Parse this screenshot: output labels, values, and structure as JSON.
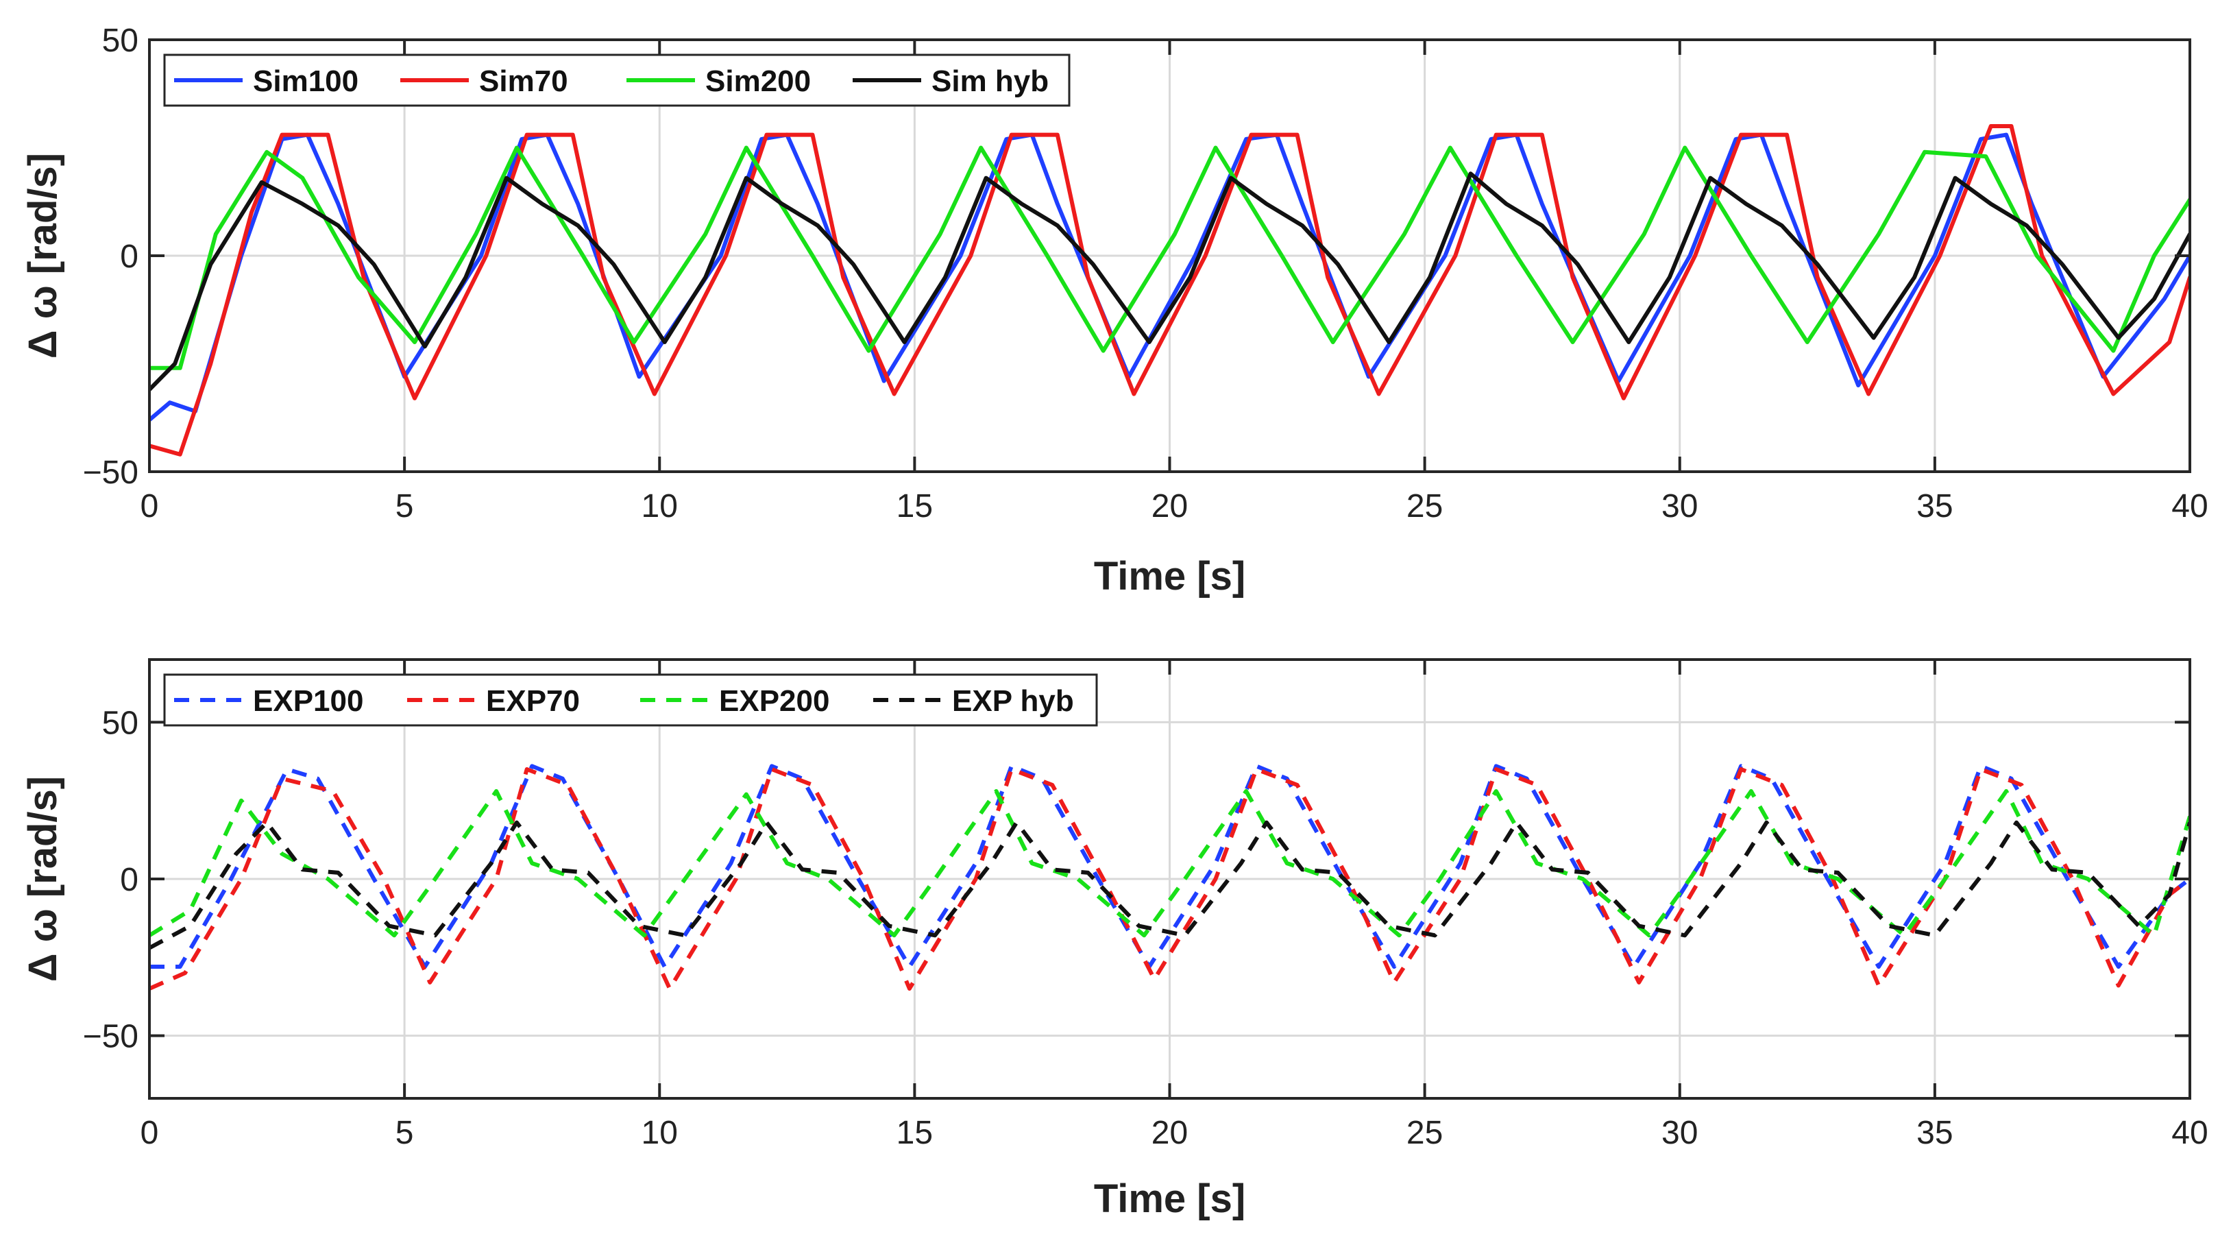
{
  "chart_data": [
    {
      "type": "line",
      "panel": "top",
      "xlabel": "Time [s]",
      "ylabel": "Δ ω [rad/s]",
      "xlim": [
        0,
        40
      ],
      "ylim": [
        -50,
        50
      ],
      "xticks": [
        0,
        5,
        10,
        15,
        20,
        25,
        30,
        35,
        40
      ],
      "yticks": [
        -50,
        0,
        50
      ],
      "xtick_labels": [
        "0",
        "5",
        "10",
        "15",
        "20",
        "25",
        "30",
        "35",
        "40"
      ],
      "ytick_labels": [
        "−50",
        "0",
        "50"
      ],
      "grid": true,
      "legend_position": "top-left",
      "line_style": "solid",
      "series": [
        {
          "name": "Sim100",
          "color": "#1f3fff",
          "x": [
            0,
            0.4,
            0.9,
            1.8,
            2.6,
            3.1,
            3.7,
            5.0,
            6.5,
            7.3,
            7.8,
            8.4,
            9.6,
            11.2,
            12.0,
            12.5,
            13.1,
            14.4,
            15.9,
            16.8,
            17.3,
            17.8,
            19.2,
            20.5,
            21.5,
            22.1,
            22.6,
            23.9,
            25.4,
            26.3,
            26.8,
            27.3,
            28.8,
            30.2,
            31.1,
            31.6,
            32.1,
            33.5,
            35.0,
            35.9,
            36.4,
            36.9,
            38.3,
            39.5,
            40.0
          ],
          "values": [
            -38,
            -34,
            -36,
            0,
            27,
            28,
            12,
            -28,
            0,
            27,
            28,
            12,
            -28,
            0,
            27,
            28,
            12,
            -29,
            0,
            27,
            28,
            12,
            -28,
            0,
            27,
            28,
            12,
            -28,
            0,
            27,
            28,
            12,
            -29,
            0,
            27,
            28,
            12,
            -30,
            0,
            27,
            28,
            12,
            -28,
            -10,
            0
          ]
        },
        {
          "name": "Sim70",
          "color": "#ee1c1c",
          "x": [
            0,
            0.6,
            1.2,
            2.0,
            2.6,
            3.5,
            4.2,
            5.2,
            6.6,
            7.4,
            8.3,
            8.9,
            9.9,
            11.3,
            12.1,
            13.0,
            13.6,
            14.6,
            16.1,
            16.9,
            17.8,
            18.4,
            19.3,
            20.7,
            21.6,
            22.5,
            23.1,
            24.1,
            25.6,
            26.4,
            27.3,
            27.9,
            28.9,
            30.3,
            31.2,
            32.1,
            32.7,
            33.7,
            35.1,
            36.1,
            36.5,
            37.1,
            38.5,
            39.6,
            40.0
          ],
          "values": [
            -44,
            -46,
            -25,
            10,
            28,
            28,
            -5,
            -33,
            0,
            28,
            28,
            -5,
            -32,
            0,
            28,
            28,
            -5,
            -32,
            0,
            28,
            28,
            -5,
            -32,
            0,
            28,
            28,
            -5,
            -32,
            0,
            28,
            28,
            -5,
            -33,
            0,
            28,
            28,
            -5,
            -32,
            0,
            30,
            30,
            0,
            -32,
            -20,
            -5
          ]
        },
        {
          "name": "Sim200",
          "color": "#18e018",
          "x": [
            0,
            0.6,
            1.3,
            2.3,
            3.0,
            4.1,
            5.2,
            6.4,
            7.2,
            8.5,
            9.5,
            10.9,
            11.7,
            13.0,
            14.1,
            15.5,
            16.3,
            17.6,
            18.7,
            20.1,
            20.9,
            22.2,
            23.2,
            24.6,
            25.5,
            26.8,
            27.9,
            29.3,
            30.1,
            31.4,
            32.5,
            33.9,
            34.8,
            36.0,
            37.0,
            38.5,
            39.3,
            40.0
          ],
          "values": [
            -26,
            -26,
            5,
            24,
            18,
            -5,
            -20,
            5,
            25,
            0,
            -20,
            5,
            25,
            0,
            -22,
            5,
            25,
            0,
            -22,
            5,
            25,
            0,
            -20,
            5,
            25,
            0,
            -20,
            5,
            25,
            0,
            -20,
            5,
            24,
            23,
            0,
            -22,
            0,
            13
          ]
        },
        {
          "name": "Sim hyb",
          "color": "#111111",
          "x": [
            0,
            0.5,
            1.2,
            2.2,
            3.0,
            3.7,
            4.4,
            5.4,
            6.2,
            7.0,
            7.7,
            8.4,
            9.1,
            10.1,
            10.9,
            11.7,
            12.4,
            13.1,
            13.8,
            14.8,
            15.6,
            16.4,
            17.1,
            17.8,
            18.5,
            19.6,
            20.4,
            21.2,
            21.9,
            22.6,
            23.3,
            24.3,
            25.1,
            25.9,
            26.6,
            27.3,
            28.0,
            29.0,
            29.8,
            30.6,
            31.3,
            32.0,
            32.7,
            33.8,
            34.6,
            35.4,
            36.1,
            36.8,
            37.5,
            38.6,
            39.3,
            40.0
          ],
          "values": [
            -31,
            -25,
            -2,
            17,
            12,
            7,
            -2,
            -21,
            -5,
            18,
            12,
            7,
            -2,
            -20,
            -5,
            18,
            12,
            7,
            -2,
            -20,
            -5,
            18,
            12,
            7,
            -2,
            -20,
            -5,
            18,
            12,
            7,
            -2,
            -20,
            -5,
            19,
            12,
            7,
            -2,
            -20,
            -5,
            18,
            12,
            7,
            -2,
            -19,
            -5,
            18,
            12,
            7,
            -2,
            -19,
            -10,
            5
          ]
        }
      ]
    },
    {
      "type": "line",
      "panel": "bottom",
      "xlabel": "Time [s]",
      "ylabel": "Δ ω [rad/s]",
      "xlim": [
        0,
        40
      ],
      "ylim": [
        -70,
        70
      ],
      "xticks": [
        0,
        5,
        10,
        15,
        20,
        25,
        30,
        35,
        40
      ],
      "yticks": [
        -50,
        0,
        50
      ],
      "xtick_labels": [
        "0",
        "5",
        "10",
        "15",
        "20",
        "25",
        "30",
        "35",
        "40"
      ],
      "ytick_labels": [
        "−50",
        "0",
        "50"
      ],
      "grid": true,
      "legend_position": "top-left",
      "line_style": "dashed",
      "series": [
        {
          "name": "EXP100",
          "color": "#1f3fff",
          "x": [
            0,
            0.6,
            1.6,
            2.7,
            3.3,
            4.4,
            5.4,
            6.7,
            7.5,
            8.1,
            9.2,
            10.1,
            11.4,
            12.2,
            12.8,
            13.9,
            14.9,
            16.2,
            16.9,
            17.5,
            18.6,
            19.6,
            20.9,
            21.7,
            22.3,
            23.4,
            24.4,
            25.7,
            26.4,
            27.0,
            28.1,
            29.1,
            30.4,
            31.2,
            31.8,
            32.9,
            33.9,
            35.2,
            35.9,
            36.5,
            37.6,
            38.6,
            39.6,
            40.0
          ],
          "values": [
            -28,
            -28,
            0,
            35,
            32,
            0,
            -28,
            5,
            36,
            32,
            0,
            -28,
            5,
            36,
            32,
            0,
            -28,
            5,
            36,
            32,
            0,
            -28,
            5,
            36,
            32,
            0,
            -28,
            5,
            36,
            32,
            0,
            -28,
            5,
            36,
            32,
            0,
            -28,
            5,
            36,
            32,
            0,
            -28,
            -5,
            0
          ]
        },
        {
          "name": "EXP70",
          "color": "#ee1c1c",
          "x": [
            0,
            0.7,
            1.8,
            2.6,
            3.6,
            4.6,
            5.5,
            6.8,
            7.4,
            8.2,
            9.2,
            10.2,
            11.5,
            12.2,
            13.0,
            14.0,
            14.9,
            16.2,
            16.9,
            17.7,
            18.7,
            19.7,
            20.9,
            21.7,
            22.5,
            23.5,
            24.4,
            25.7,
            26.4,
            27.2,
            28.2,
            29.2,
            30.4,
            31.2,
            32.0,
            33.0,
            33.9,
            35.2,
            35.9,
            36.7,
            37.7,
            38.6,
            39.6,
            40.0
          ],
          "values": [
            -35,
            -30,
            0,
            32,
            28,
            0,
            -33,
            0,
            35,
            30,
            0,
            -35,
            0,
            35,
            30,
            0,
            -35,
            0,
            35,
            30,
            0,
            -32,
            0,
            35,
            30,
            0,
            -33,
            0,
            35,
            30,
            0,
            -33,
            0,
            35,
            30,
            0,
            -34,
            0,
            35,
            30,
            0,
            -34,
            -5,
            0
          ]
        },
        {
          "name": "EXP200",
          "color": "#18e018",
          "x": [
            0,
            0.8,
            1.8,
            2.6,
            3.5,
            4.8,
            5.6,
            6.8,
            7.5,
            8.4,
            9.7,
            10.5,
            11.7,
            12.5,
            13.3,
            14.6,
            15.4,
            16.6,
            17.3,
            18.2,
            19.5,
            20.3,
            21.5,
            22.3,
            23.2,
            24.5,
            25.3,
            26.4,
            27.2,
            28.1,
            29.4,
            30.2,
            31.4,
            32.2,
            33.1,
            34.4,
            35.2,
            36.4,
            37.1,
            38.0,
            39.3,
            40.0
          ],
          "values": [
            -18,
            -10,
            25,
            8,
            0,
            -18,
            0,
            28,
            5,
            0,
            -18,
            0,
            27,
            5,
            0,
            -18,
            0,
            28,
            5,
            0,
            -18,
            0,
            28,
            5,
            0,
            -18,
            0,
            28,
            5,
            0,
            -18,
            0,
            28,
            5,
            0,
            -18,
            0,
            28,
            5,
            0,
            -18,
            20
          ]
        },
        {
          "name": "EXP hyb",
          "color": "#111111",
          "x": [
            0,
            0.8,
            1.7,
            2.3,
            3.0,
            3.7,
            4.7,
            5.6,
            6.7,
            7.2,
            7.9,
            8.6,
            9.6,
            10.5,
            11.6,
            12.1,
            12.8,
            13.5,
            14.5,
            15.4,
            16.5,
            17.0,
            17.7,
            18.4,
            19.4,
            20.3,
            21.4,
            21.9,
            22.6,
            23.3,
            24.3,
            25.2,
            26.3,
            26.8,
            27.5,
            28.2,
            29.2,
            30.1,
            31.2,
            31.7,
            32.4,
            33.1,
            34.1,
            35.0,
            36.1,
            36.6,
            37.3,
            38.0,
            39.0,
            39.6,
            40.0
          ],
          "values": [
            -22,
            -15,
            8,
            18,
            3,
            2,
            -15,
            -18,
            5,
            18,
            3,
            2,
            -15,
            -18,
            5,
            18,
            3,
            2,
            -15,
            -18,
            5,
            18,
            3,
            2,
            -15,
            -18,
            5,
            18,
            3,
            2,
            -15,
            -18,
            5,
            18,
            3,
            2,
            -15,
            -18,
            5,
            18,
            3,
            2,
            -15,
            -18,
            5,
            18,
            3,
            2,
            -15,
            -5,
            18
          ]
        }
      ]
    }
  ]
}
